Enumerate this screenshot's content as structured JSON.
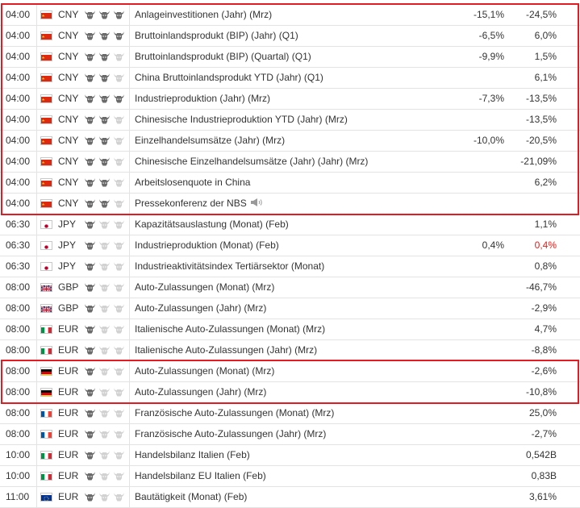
{
  "rows": [
    {
      "time": "04:00",
      "flag": "cn",
      "currency": "CNY",
      "importance": 3,
      "event": "Anlageinvestitionen (Jahr) (Mrz)",
      "previous": "-15,1%",
      "actual": "-24,5%",
      "actual_color": ""
    },
    {
      "time": "04:00",
      "flag": "cn",
      "currency": "CNY",
      "importance": 3,
      "event": "Bruttoinlandsprodukt (BIP) (Jahr) (Q1)",
      "previous": "-6,5%",
      "actual": "6,0%",
      "actual_color": ""
    },
    {
      "time": "04:00",
      "flag": "cn",
      "currency": "CNY",
      "importance": 2,
      "event": "Bruttoinlandsprodukt (BIP) (Quartal) (Q1)",
      "previous": "-9,9%",
      "actual": "1,5%",
      "actual_color": ""
    },
    {
      "time": "04:00",
      "flag": "cn",
      "currency": "CNY",
      "importance": 2,
      "event": "China Bruttoinlandsprodukt YTD (Jahr) (Q1)",
      "previous": "",
      "actual": "6,1%",
      "actual_color": ""
    },
    {
      "time": "04:00",
      "flag": "cn",
      "currency": "CNY",
      "importance": 3,
      "event": "Industrieproduktion (Jahr) (Mrz)",
      "previous": "-7,3%",
      "actual": "-13,5%",
      "actual_color": ""
    },
    {
      "time": "04:00",
      "flag": "cn",
      "currency": "CNY",
      "importance": 2,
      "event": "Chinesische Industrieproduktion YTD (Jahr) (Mrz)",
      "previous": "",
      "actual": "-13,5%",
      "actual_color": ""
    },
    {
      "time": "04:00",
      "flag": "cn",
      "currency": "CNY",
      "importance": 2,
      "event": "Einzelhandelsumsätze (Jahr) (Mrz)",
      "previous": "-10,0%",
      "actual": "-20,5%",
      "actual_color": ""
    },
    {
      "time": "04:00",
      "flag": "cn",
      "currency": "CNY",
      "importance": 2,
      "event": "Chinesische Einzelhandelsumsätze (Jahr) (Jahr) (Mrz)",
      "previous": "",
      "actual": "-21,09%",
      "actual_color": ""
    },
    {
      "time": "04:00",
      "flag": "cn",
      "currency": "CNY",
      "importance": 2,
      "event": "Arbeitslosenquote in China",
      "previous": "",
      "actual": "6,2%",
      "actual_color": ""
    },
    {
      "time": "04:00",
      "flag": "cn",
      "currency": "CNY",
      "importance": 2,
      "event": "Pressekonferenz der NBS",
      "previous": "",
      "actual": "",
      "actual_color": "",
      "speaker": true
    },
    {
      "time": "06:30",
      "flag": "jp",
      "currency": "JPY",
      "importance": 1,
      "event": "Kapazitätsauslastung (Monat) (Feb)",
      "previous": "",
      "actual": "1,1%",
      "actual_color": ""
    },
    {
      "time": "06:30",
      "flag": "jp",
      "currency": "JPY",
      "importance": 1,
      "event": "Industrieproduktion (Monat) (Feb)",
      "previous": "0,4%",
      "actual": "0,4%",
      "actual_color": "red"
    },
    {
      "time": "06:30",
      "flag": "jp",
      "currency": "JPY",
      "importance": 1,
      "event": "Industrieaktivitätsindex Tertiärsektor (Monat)",
      "previous": "",
      "actual": "0,8%",
      "actual_color": ""
    },
    {
      "time": "08:00",
      "flag": "gb",
      "currency": "GBP",
      "importance": 1,
      "event": "Auto-Zulassungen (Monat) (Mrz)",
      "previous": "",
      "actual": "-46,7%",
      "actual_color": ""
    },
    {
      "time": "08:00",
      "flag": "gb",
      "currency": "GBP",
      "importance": 1,
      "event": "Auto-Zulassungen (Jahr) (Mrz)",
      "previous": "",
      "actual": "-2,9%",
      "actual_color": ""
    },
    {
      "time": "08:00",
      "flag": "it",
      "currency": "EUR",
      "importance": 1,
      "event": "Italienische Auto-Zulassungen (Monat) (Mrz)",
      "previous": "",
      "actual": "4,7%",
      "actual_color": ""
    },
    {
      "time": "08:00",
      "flag": "it",
      "currency": "EUR",
      "importance": 1,
      "event": "Italienische Auto-Zulassungen (Jahr) (Mrz)",
      "previous": "",
      "actual": "-8,8%",
      "actual_color": ""
    },
    {
      "time": "08:00",
      "flag": "de",
      "currency": "EUR",
      "importance": 1,
      "event": "Auto-Zulassungen (Monat) (Mrz)",
      "previous": "",
      "actual": "-2,6%",
      "actual_color": ""
    },
    {
      "time": "08:00",
      "flag": "de",
      "currency": "EUR",
      "importance": 1,
      "event": "Auto-Zulassungen (Jahr) (Mrz)",
      "previous": "",
      "actual": "-10,8%",
      "actual_color": ""
    },
    {
      "time": "08:00",
      "flag": "fr",
      "currency": "EUR",
      "importance": 1,
      "event": "Französische Auto-Zulassungen (Monat) (Mrz)",
      "previous": "",
      "actual": "25,0%",
      "actual_color": ""
    },
    {
      "time": "08:00",
      "flag": "fr",
      "currency": "EUR",
      "importance": 1,
      "event": "Französische Auto-Zulassungen (Jahr) (Mrz)",
      "previous": "",
      "actual": "-2,7%",
      "actual_color": ""
    },
    {
      "time": "10:00",
      "flag": "it",
      "currency": "EUR",
      "importance": 1,
      "event": "Handelsbilanz Italien (Feb)",
      "previous": "",
      "actual": "0,542B",
      "actual_color": ""
    },
    {
      "time": "10:00",
      "flag": "it",
      "currency": "EUR",
      "importance": 1,
      "event": "Handelsbilanz EU Italien (Feb)",
      "previous": "",
      "actual": "0,83B",
      "actual_color": ""
    },
    {
      "time": "11:00",
      "flag": "eu",
      "currency": "EUR",
      "importance": 1,
      "event": "Bautätigkeit (Monat) (Feb)",
      "previous": "",
      "actual": "3,61%",
      "actual_color": ""
    }
  ],
  "colors": {
    "highlight_border": "#e31c23",
    "bull_active": "#6b6b6b",
    "bull_inactive": "#d2d2d2",
    "value_red": "#e8201c"
  },
  "icons": {
    "importance": "bull-icon",
    "speech": "speaker-icon"
  }
}
